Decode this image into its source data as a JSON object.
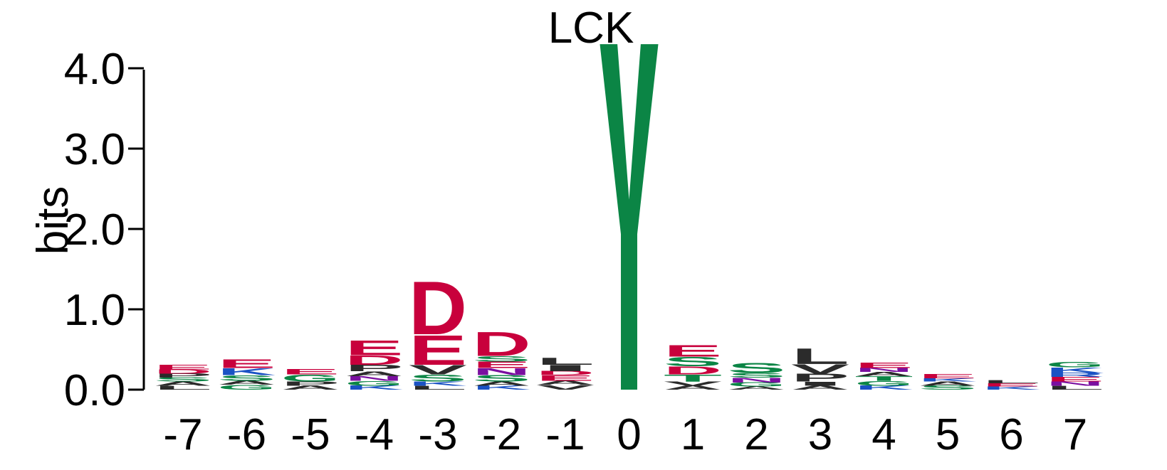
{
  "chart_data": {
    "type": "sequence-logo",
    "title": "LCK",
    "ylabel": "bits",
    "ylim": [
      0,
      4.0
    ],
    "yticks": [
      "0.0",
      "1.0",
      "2.0",
      "3.0",
      "4.0"
    ],
    "ytick_values": [
      0,
      1,
      2,
      3,
      4
    ],
    "colors": {
      "acidic": "#c8003c",
      "polar": "#0b8545",
      "basic": "#1a52c4",
      "hydrophobic": "#2b2b2b",
      "amide": "#7a0fa0"
    },
    "positions": [
      {
        "label": "-7",
        "stack": [
          {
            "letter": "L",
            "height": 0.05,
            "color": "#2b2b2b"
          },
          {
            "letter": "A",
            "height": 0.05,
            "color": "#2b2b2b"
          },
          {
            "letter": "S",
            "height": 0.05,
            "color": "#0b8545"
          },
          {
            "letter": "P",
            "height": 0.05,
            "color": "#2b2b2b"
          },
          {
            "letter": "D",
            "height": 0.05,
            "color": "#c8003c"
          },
          {
            "letter": "E",
            "height": 0.06,
            "color": "#c8003c"
          }
        ]
      },
      {
        "label": "-6",
        "stack": [
          {
            "letter": "G",
            "height": 0.06,
            "color": "#0b8545"
          },
          {
            "letter": "A",
            "height": 0.05,
            "color": "#2b2b2b"
          },
          {
            "letter": "S",
            "height": 0.07,
            "color": "#0b8545"
          },
          {
            "letter": "K",
            "height": 0.09,
            "color": "#1a52c4"
          },
          {
            "letter": "E",
            "height": 0.11,
            "color": "#c8003c"
          }
        ]
      },
      {
        "label": "-5",
        "stack": [
          {
            "letter": "A",
            "height": 0.05,
            "color": "#2b2b2b"
          },
          {
            "letter": "P",
            "height": 0.05,
            "color": "#2b2b2b"
          },
          {
            "letter": "G",
            "height": 0.09,
            "color": "#0b8545"
          },
          {
            "letter": "E",
            "height": 0.07,
            "color": "#c8003c"
          }
        ]
      },
      {
        "label": "-4",
        "stack": [
          {
            "letter": "K",
            "height": 0.05,
            "color": "#1a52c4"
          },
          {
            "letter": "G",
            "height": 0.06,
            "color": "#0b8545"
          },
          {
            "letter": "N",
            "height": 0.06,
            "color": "#7a0fa0"
          },
          {
            "letter": "A",
            "height": 0.06,
            "color": "#2b2b2b"
          },
          {
            "letter": "P",
            "height": 0.08,
            "color": "#2b2b2b"
          },
          {
            "letter": "D",
            "height": 0.12,
            "color": "#c8003c"
          },
          {
            "letter": "E",
            "height": 0.19,
            "color": "#c8003c"
          }
        ]
      },
      {
        "label": "-3",
        "stack": [
          {
            "letter": "L",
            "height": 0.05,
            "color": "#2b2b2b"
          },
          {
            "letter": "K",
            "height": 0.05,
            "color": "#1a52c4"
          },
          {
            "letter": "S",
            "height": 0.09,
            "color": "#0b8545"
          },
          {
            "letter": "V",
            "height": 0.12,
            "color": "#2b2b2b"
          },
          {
            "letter": "E",
            "height": 0.38,
            "color": "#c8003c"
          },
          {
            "letter": "D",
            "height": 0.68,
            "color": "#c8003c"
          }
        ]
      },
      {
        "label": "-2",
        "stack": [
          {
            "letter": "K",
            "height": 0.05,
            "color": "#1a52c4"
          },
          {
            "letter": "A",
            "height": 0.05,
            "color": "#2b2b2b"
          },
          {
            "letter": "S",
            "height": 0.08,
            "color": "#0b8545"
          },
          {
            "letter": "N",
            "height": 0.09,
            "color": "#7a0fa0"
          },
          {
            "letter": "E",
            "height": 0.08,
            "color": "#c8003c"
          },
          {
            "letter": "S",
            "height": 0.07,
            "color": "#0b8545"
          },
          {
            "letter": "D",
            "height": 0.31,
            "color": "#c8003c"
          }
        ]
      },
      {
        "label": "-1",
        "stack": [
          {
            "letter": "V",
            "height": 0.06,
            "color": "#2b2b2b"
          },
          {
            "letter": "A",
            "height": 0.05,
            "color": "#2b2b2b"
          },
          {
            "letter": "E",
            "height": 0.07,
            "color": "#c8003c"
          },
          {
            "letter": "D",
            "height": 0.05,
            "color": "#c8003c"
          },
          {
            "letter": "I",
            "height": 0.08,
            "color": "#2b2b2b"
          },
          {
            "letter": "L",
            "height": 0.09,
            "color": "#2b2b2b"
          }
        ]
      },
      {
        "label": "0",
        "stack": [
          {
            "letter": "Y",
            "height": 4.3,
            "color": "#0b8545"
          }
        ]
      },
      {
        "label": "1",
        "stack": [
          {
            "letter": "A",
            "height": 0.05,
            "color": "#2b2b2b"
          },
          {
            "letter": "V",
            "height": 0.05,
            "color": "#2b2b2b"
          },
          {
            "letter": "T",
            "height": 0.09,
            "color": "#0b8545"
          },
          {
            "letter": "D",
            "height": 0.1,
            "color": "#c8003c"
          },
          {
            "letter": "S",
            "height": 0.12,
            "color": "#0b8545"
          },
          {
            "letter": "E",
            "height": 0.15,
            "color": "#c8003c"
          }
        ]
      },
      {
        "label": "2",
        "stack": [
          {
            "letter": "A",
            "height": 0.04,
            "color": "#2b2b2b"
          },
          {
            "letter": "G",
            "height": 0.05,
            "color": "#0b8545"
          },
          {
            "letter": "N",
            "height": 0.06,
            "color": "#7a0fa0"
          },
          {
            "letter": "S",
            "height": 0.06,
            "color": "#0b8545"
          },
          {
            "letter": "S",
            "height": 0.13,
            "color": "#0b8545"
          }
        ]
      },
      {
        "label": "3",
        "stack": [
          {
            "letter": "A",
            "height": 0.05,
            "color": "#2b2b2b"
          },
          {
            "letter": "I",
            "height": 0.05,
            "color": "#2b2b2b"
          },
          {
            "letter": "P",
            "height": 0.1,
            "color": "#2b2b2b"
          },
          {
            "letter": "V",
            "height": 0.12,
            "color": "#2b2b2b"
          },
          {
            "letter": "L",
            "height": 0.2,
            "color": "#2b2b2b"
          }
        ]
      },
      {
        "label": "4",
        "stack": [
          {
            "letter": "K",
            "height": 0.05,
            "color": "#1a52c4"
          },
          {
            "letter": "G",
            "height": 0.06,
            "color": "#0b8545"
          },
          {
            "letter": "T",
            "height": 0.06,
            "color": "#0b8545"
          },
          {
            "letter": "A",
            "height": 0.05,
            "color": "#2b2b2b"
          },
          {
            "letter": "N",
            "height": 0.05,
            "color": "#7a0fa0"
          },
          {
            "letter": "E",
            "height": 0.07,
            "color": "#c8003c"
          }
        ]
      },
      {
        "label": "5",
        "stack": [
          {
            "letter": "S",
            "height": 0.05,
            "color": "#0b8545"
          },
          {
            "letter": "A",
            "height": 0.05,
            "color": "#2b2b2b"
          },
          {
            "letter": "K",
            "height": 0.04,
            "color": "#1a52c4"
          },
          {
            "letter": "E",
            "height": 0.05,
            "color": "#c8003c"
          }
        ]
      },
      {
        "label": "6",
        "stack": [
          {
            "letter": "K",
            "height": 0.04,
            "color": "#1a52c4"
          },
          {
            "letter": "E",
            "height": 0.04,
            "color": "#c8003c"
          },
          {
            "letter": "L",
            "height": 0.04,
            "color": "#2b2b2b"
          }
        ]
      },
      {
        "label": "7",
        "stack": [
          {
            "letter": "L",
            "height": 0.05,
            "color": "#2b2b2b"
          },
          {
            "letter": "N",
            "height": 0.05,
            "color": "#7a0fa0"
          },
          {
            "letter": "E",
            "height": 0.06,
            "color": "#c8003c"
          },
          {
            "letter": "R",
            "height": 0.05,
            "color": "#1a52c4"
          },
          {
            "letter": "K",
            "height": 0.07,
            "color": "#1a52c4"
          },
          {
            "letter": "G",
            "height": 0.07,
            "color": "#0b8545"
          }
        ]
      }
    ]
  }
}
